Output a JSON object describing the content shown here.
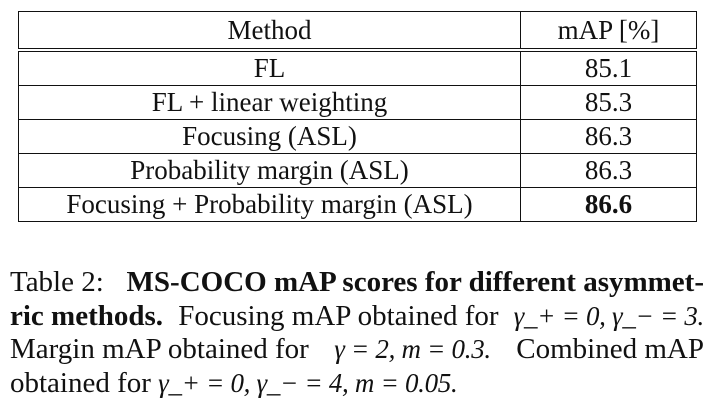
{
  "table": {
    "headers": [
      "Method",
      "mAP [%]"
    ],
    "rows": [
      {
        "method": "FL",
        "map": "85.1",
        "bold": false
      },
      {
        "method": "FL + linear weighting",
        "map": "85.3",
        "bold": false
      },
      {
        "method": "Focusing (ASL)",
        "map": "86.3",
        "bold": false
      },
      {
        "method": "Probability margin (ASL)",
        "map": "86.3",
        "bold": false
      },
      {
        "method": "Focusing + Probability margin (ASL)",
        "map": "86.6",
        "bold": true
      }
    ]
  },
  "caption": {
    "lines": [
      [
        {
          "t": "text",
          "v": "Table 2: "
        },
        {
          "t": "bold",
          "v": "MS-COCO mAP scores for different asymmet-"
        }
      ],
      [
        {
          "t": "bold",
          "v": "ric methods."
        },
        {
          "t": "text",
          "v": " Focusing mAP obtained for "
        },
        {
          "t": "math",
          "v": "γ_+ = 0, γ_− = 3."
        }
      ],
      [
        {
          "t": "text",
          "v": "Margin mAP obtained for "
        },
        {
          "t": "math",
          "v": "γ = 2, m = 0.3."
        },
        {
          "t": "text",
          "v": " Combined mAP"
        }
      ],
      [
        {
          "t": "text",
          "v": "obtained for "
        },
        {
          "t": "math",
          "v": "γ_+ = 0, γ_− = 4, m = 0.05."
        }
      ]
    ]
  }
}
